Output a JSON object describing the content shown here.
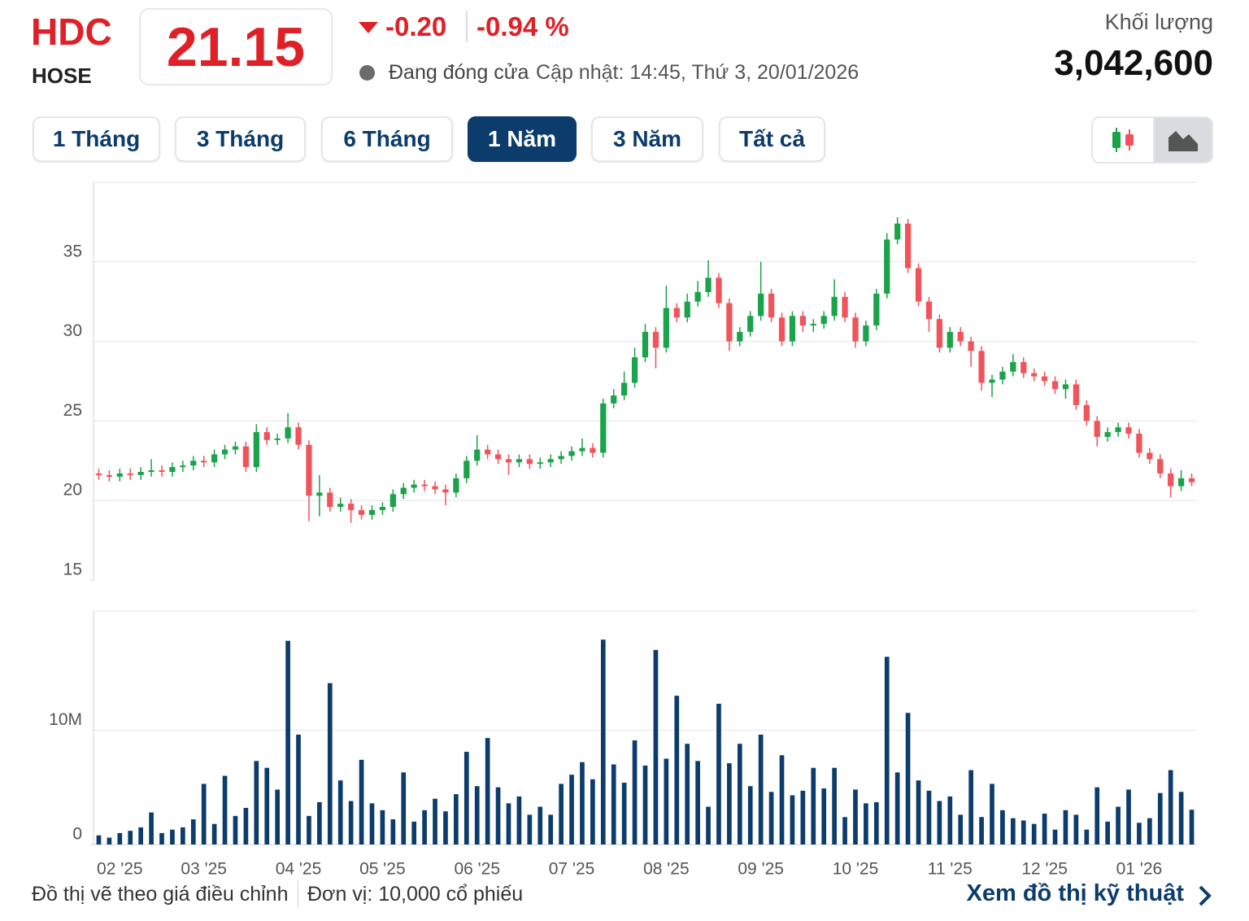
{
  "header": {
    "ticker": "HDC",
    "exchange": "HOSE",
    "price": "21.15",
    "change": "-0.20",
    "change_pct": "-0.94 %",
    "status": "Đang đóng cửa",
    "updated": "Cập nhật: 14:45, Thứ 3, 20/01/2026",
    "volume_label": "Khối lượng",
    "volume": "3,042,600"
  },
  "range_buttons": [
    "1 Tháng",
    "3 Tháng",
    "6 Tháng",
    "1 Năm",
    "3 Năm",
    "Tất cả"
  ],
  "active_range": 3,
  "footer": {
    "note": "Đồ thị vẽ theo giá điều chỉnh",
    "unit": "Đơn vị: 10,000 cổ phiếu",
    "link": "Xem đồ thị kỹ thuật"
  },
  "chart_data": [
    {
      "type": "candlestick",
      "up_color": "#1aa34a",
      "down_color": "#f0545a",
      "grid": true,
      "ylim": [
        15,
        40
      ],
      "yticks": [
        15,
        20,
        25,
        30,
        35
      ],
      "open": [
        21.7,
        21.6,
        21.5,
        21.7,
        21.6,
        21.8,
        21.9,
        21.8,
        22.1,
        22.2,
        22.5,
        22.4,
        22.9,
        23.2,
        23.4,
        22.1,
        24.3,
        23.8,
        23.9,
        24.6,
        23.5,
        20.3,
        20.5,
        19.6,
        19.8,
        19.4,
        19.1,
        19.4,
        19.6,
        20.4,
        20.8,
        21.0,
        20.9,
        20.7,
        20.5,
        21.4,
        22.5,
        23.2,
        22.9,
        22.6,
        22.4,
        22.6,
        22.3,
        22.4,
        22.6,
        22.8,
        23.1,
        23.3,
        23.0,
        26.1,
        26.6,
        27.4,
        29.0,
        30.6,
        29.6,
        32.1,
        31.5,
        32.5,
        33.1,
        34.0,
        32.4,
        30.0,
        30.6,
        31.6,
        33.0,
        31.5,
        30.0,
        31.6,
        31.0,
        31.1,
        31.6,
        32.8,
        31.5,
        30.0,
        31.0,
        33.0,
        36.4,
        37.4,
        34.6,
        32.5,
        31.4,
        29.6,
        30.6,
        30.0,
        29.4,
        27.4,
        27.6,
        28.1,
        28.7,
        28.0,
        27.8,
        27.5,
        27.0,
        27.3,
        26.0,
        25.0,
        24.0,
        24.3,
        24.6,
        24.2,
        23.0,
        22.6,
        21.7,
        20.9,
        21.4
      ],
      "high": [
        22.0,
        21.9,
        22.0,
        22.0,
        22.1,
        22.6,
        22.2,
        22.4,
        22.5,
        22.8,
        22.8,
        23.2,
        23.5,
        23.7,
        23.7,
        24.8,
        24.6,
        24.2,
        25.5,
        24.9,
        23.8,
        21.6,
        20.8,
        20.2,
        20.1,
        19.7,
        19.7,
        19.9,
        20.7,
        21.1,
        21.3,
        21.3,
        21.2,
        21.0,
        21.7,
        22.8,
        24.1,
        23.5,
        23.2,
        22.9,
        22.9,
        22.9,
        22.7,
        22.9,
        23.1,
        23.4,
        23.9,
        23.6,
        26.4,
        27.0,
        28.1,
        29.6,
        31.1,
        30.9,
        33.5,
        32.4,
        33.0,
        33.8,
        35.1,
        34.3,
        32.7,
        30.9,
        31.9,
        35.0,
        33.3,
        31.8,
        31.9,
        31.9,
        31.4,
        31.9,
        33.9,
        33.1,
        31.8,
        31.3,
        33.3,
        36.8,
        37.8,
        37.7,
        34.9,
        32.8,
        31.7,
        30.9,
        30.9,
        30.3,
        29.7,
        27.9,
        28.4,
        29.2,
        29.0,
        28.3,
        28.1,
        27.8,
        27.6,
        27.6,
        26.3,
        25.3,
        24.6,
        24.9,
        24.9,
        24.5,
        23.3,
        22.9,
        22.0,
        21.9,
        21.7
      ],
      "low": [
        21.3,
        21.2,
        21.2,
        21.3,
        21.3,
        21.5,
        21.5,
        21.5,
        21.8,
        21.9,
        22.1,
        22.1,
        22.6,
        22.9,
        21.8,
        21.8,
        23.5,
        23.5,
        23.6,
        23.2,
        18.7,
        19.0,
        19.3,
        19.3,
        18.6,
        18.8,
        18.8,
        19.1,
        19.3,
        20.1,
        20.5,
        20.6,
        20.4,
        19.7,
        20.2,
        21.1,
        22.2,
        22.6,
        22.3,
        21.6,
        22.1,
        22.0,
        22.0,
        22.1,
        22.3,
        22.5,
        22.8,
        22.7,
        22.7,
        25.8,
        26.3,
        27.1,
        28.7,
        28.3,
        29.3,
        31.2,
        31.2,
        32.2,
        32.8,
        32.1,
        29.4,
        29.7,
        30.3,
        31.3,
        31.2,
        29.7,
        29.7,
        30.6,
        30.6,
        30.8,
        31.3,
        31.2,
        29.6,
        29.7,
        30.7,
        32.7,
        36.1,
        34.3,
        32.2,
        30.6,
        29.3,
        29.3,
        29.7,
        28.4,
        26.9,
        26.5,
        27.3,
        27.8,
        27.7,
        27.5,
        27.2,
        26.7,
        26.4,
        25.7,
        24.7,
        23.4,
        23.7,
        24.0,
        23.9,
        22.7,
        22.3,
        21.4,
        20.2,
        20.6,
        20.9
      ],
      "close": [
        21.6,
        21.5,
        21.7,
        21.6,
        21.8,
        21.9,
        21.8,
        22.1,
        22.2,
        22.5,
        22.4,
        22.9,
        23.2,
        23.4,
        22.1,
        24.3,
        23.8,
        23.9,
        24.6,
        23.5,
        20.3,
        20.5,
        19.6,
        19.8,
        19.4,
        19.1,
        19.4,
        19.6,
        20.4,
        20.8,
        21.0,
        20.9,
        20.7,
        20.5,
        21.4,
        22.5,
        23.2,
        22.9,
        22.6,
        22.4,
        22.6,
        22.3,
        22.4,
        22.6,
        22.8,
        23.1,
        23.3,
        23.0,
        26.1,
        26.6,
        27.4,
        29.0,
        30.6,
        29.6,
        32.1,
        31.5,
        32.5,
        33.1,
        34.0,
        32.4,
        30.0,
        30.6,
        31.6,
        33.0,
        31.5,
        30.0,
        31.6,
        31.0,
        31.1,
        31.6,
        32.8,
        31.5,
        30.0,
        31.0,
        33.0,
        36.4,
        37.4,
        34.6,
        32.5,
        31.4,
        29.6,
        30.6,
        30.0,
        29.4,
        27.4,
        27.6,
        28.1,
        28.7,
        28.0,
        27.8,
        27.5,
        27.0,
        27.3,
        26.0,
        25.0,
        24.0,
        24.3,
        24.6,
        24.2,
        23.0,
        22.6,
        21.7,
        20.9,
        21.4,
        21.15
      ]
    },
    {
      "type": "bar",
      "color": "#0c3c6c",
      "grid": true,
      "ylim": [
        0,
        20400000
      ],
      "yticks": [
        0,
        {
          "value": 10000000,
          "label": "10M"
        }
      ],
      "categories": [
        null,
        null,
        "02 '25",
        null,
        null,
        null,
        null,
        null,
        null,
        null,
        "03 '25",
        null,
        null,
        null,
        null,
        null,
        null,
        null,
        null,
        "04 '25",
        null,
        null,
        null,
        null,
        null,
        null,
        null,
        "05 '25",
        null,
        null,
        null,
        null,
        null,
        null,
        null,
        null,
        "06 '25",
        null,
        null,
        null,
        null,
        null,
        null,
        null,
        null,
        "07 '25",
        null,
        null,
        null,
        null,
        null,
        null,
        null,
        null,
        "08 '25",
        null,
        null,
        null,
        null,
        null,
        null,
        null,
        null,
        "09 '25",
        null,
        null,
        null,
        null,
        null,
        null,
        null,
        null,
        "10 '25",
        null,
        null,
        null,
        null,
        null,
        null,
        null,
        null,
        "11 '25",
        null,
        null,
        null,
        null,
        null,
        null,
        null,
        null,
        "12 '25",
        null,
        null,
        null,
        null,
        null,
        null,
        null,
        null,
        "01 '26",
        null,
        null,
        null,
        null,
        null
      ],
      "values": [
        800000,
        600000,
        1000000,
        1200000,
        1500000,
        2800000,
        1000000,
        1300000,
        1500000,
        2200000,
        5300000,
        1800000,
        6000000,
        2500000,
        3200000,
        7300000,
        6700000,
        4800000,
        17800000,
        9600000,
        2500000,
        3700000,
        14100000,
        5600000,
        3800000,
        7400000,
        3600000,
        3000000,
        2200000,
        6300000,
        2000000,
        3000000,
        4000000,
        2900000,
        4400000,
        8100000,
        5100000,
        9300000,
        5000000,
        3600000,
        4200000,
        2600000,
        3300000,
        2600000,
        5300000,
        6100000,
        7200000,
        5700000,
        17900000,
        7000000,
        5400000,
        9100000,
        6900000,
        17000000,
        7500000,
        13000000,
        8800000,
        7300000,
        3300000,
        12300000,
        7100000,
        8800000,
        5100000,
        9600000,
        4600000,
        7800000,
        4300000,
        4700000,
        6700000,
        4900000,
        6700000,
        2400000,
        4800000,
        3600000,
        3700000,
        16400000,
        6300000,
        11500000,
        5600000,
        4700000,
        3800000,
        4200000,
        2600000,
        6500000,
        2400000,
        5300000,
        3000000,
        2300000,
        2100000,
        1800000,
        2700000,
        1300000,
        3000000,
        2600000,
        1300000,
        5000000,
        2000000,
        3300000,
        4800000,
        1900000,
        2300000,
        4500000,
        6500000,
        4600000,
        3042600
      ]
    }
  ]
}
